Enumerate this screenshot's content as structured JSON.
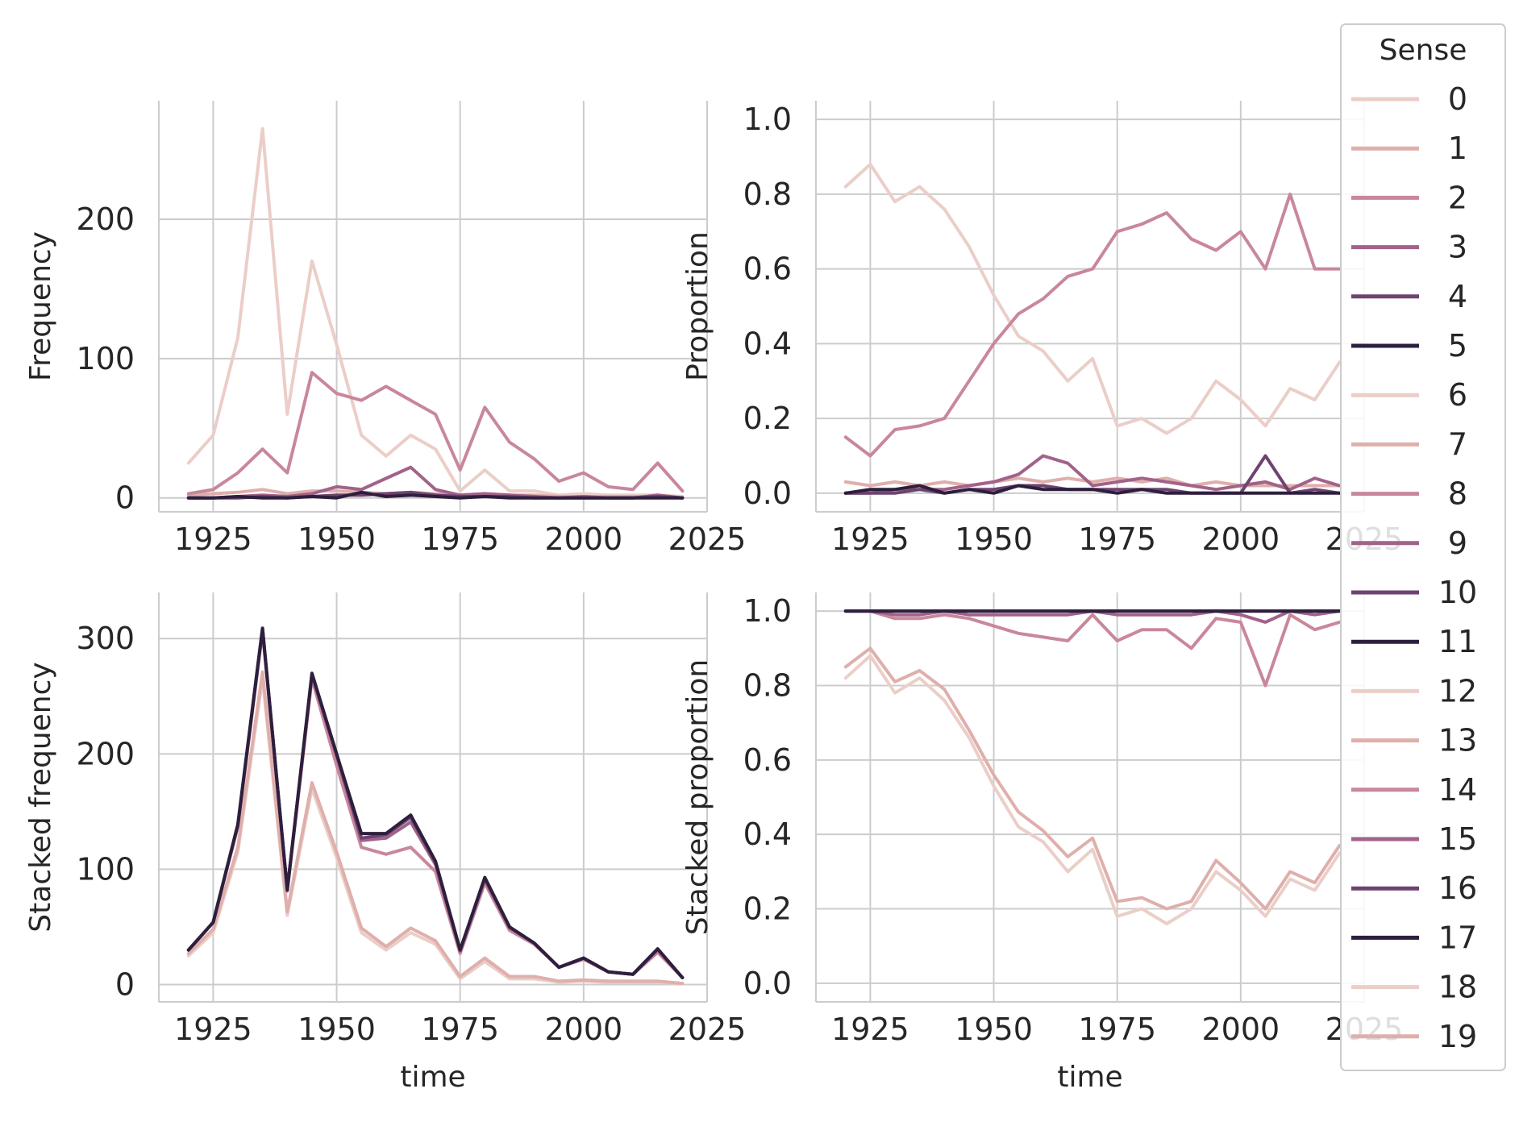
{
  "legend": {
    "title": "Sense",
    "labels": [
      "0",
      "1",
      "2",
      "3",
      "4",
      "5",
      "6",
      "7",
      "8",
      "9",
      "10",
      "11",
      "12",
      "13",
      "14",
      "15",
      "16",
      "17",
      "18",
      "19"
    ],
    "colors": [
      "#ebcec8",
      "#dfafac",
      "#c9879b",
      "#a26289",
      "#6e4370",
      "#2d1f3d",
      "#ebcec8",
      "#dfafac",
      "#c9879b",
      "#a26289",
      "#6e4370",
      "#2d1f3d",
      "#ebcec8",
      "#dfafac",
      "#c9879b",
      "#a26289",
      "#6e4370",
      "#2d1f3d",
      "#ebcec8",
      "#dfafac"
    ]
  },
  "chart_data": [
    {
      "type": "line",
      "panel": "top-left",
      "title": "",
      "xlabel": "",
      "ylabel": "Frequency",
      "xlim": [
        1914,
        2025
      ],
      "ylim": [
        -10,
        285
      ],
      "xticks": [
        1925,
        1950,
        1975,
        2000,
        2025
      ],
      "yticks": [
        0,
        100,
        200
      ],
      "grid": true,
      "x": [
        1920,
        1925,
        1930,
        1935,
        1940,
        1945,
        1950,
        1955,
        1960,
        1965,
        1970,
        1975,
        1980,
        1985,
        1990,
        1995,
        2000,
        2005,
        2010,
        2015,
        2020
      ],
      "series": [
        {
          "name": "0",
          "values": [
            25,
            45,
            115,
            265,
            60,
            170,
            110,
            45,
            30,
            45,
            35,
            5,
            20,
            5,
            5,
            2,
            3,
            2,
            2,
            2,
            1
          ]
        },
        {
          "name": "1",
          "values": [
            2,
            3,
            4,
            6,
            3,
            5,
            5,
            4,
            3,
            4,
            3,
            2,
            3,
            2,
            2,
            1,
            1,
            1,
            1,
            1,
            0
          ]
        },
        {
          "name": "2",
          "values": [
            3,
            6,
            18,
            35,
            18,
            90,
            75,
            70,
            80,
            70,
            60,
            20,
            65,
            40,
            28,
            12,
            18,
            8,
            6,
            25,
            5
          ]
        },
        {
          "name": "3",
          "values": [
            0,
            0,
            1,
            2,
            1,
            3,
            8,
            6,
            14,
            22,
            6,
            2,
            3,
            2,
            1,
            0,
            1,
            0,
            0,
            2,
            0
          ]
        },
        {
          "name": "4",
          "values": [
            0,
            0,
            0,
            1,
            0,
            1,
            2,
            2,
            3,
            4,
            2,
            1,
            1,
            1,
            0,
            0,
            0,
            0,
            0,
            1,
            0
          ]
        },
        {
          "name": "5",
          "values": [
            0,
            0,
            1,
            0,
            0,
            1,
            0,
            4,
            1,
            2,
            1,
            0,
            1,
            0,
            0,
            0,
            0,
            0,
            0,
            0,
            0
          ]
        }
      ]
    },
    {
      "type": "line",
      "panel": "top-right",
      "title": "",
      "xlabel": "",
      "ylabel": "Proportion",
      "xlim": [
        1914,
        2025
      ],
      "ylim": [
        -0.05,
        1.05
      ],
      "xticks": [
        1925,
        1950,
        1975,
        2000,
        2025
      ],
      "yticks": [
        0.0,
        0.2,
        0.4,
        0.6,
        0.8,
        1.0
      ],
      "grid": true,
      "x": [
        1920,
        1925,
        1930,
        1935,
        1940,
        1945,
        1950,
        1955,
        1960,
        1965,
        1970,
        1975,
        1980,
        1985,
        1990,
        1995,
        2000,
        2005,
        2010,
        2015,
        2020
      ],
      "series": [
        {
          "name": "0",
          "values": [
            0.82,
            0.88,
            0.78,
            0.82,
            0.76,
            0.66,
            0.53,
            0.42,
            0.38,
            0.3,
            0.36,
            0.18,
            0.2,
            0.16,
            0.2,
            0.3,
            0.25,
            0.18,
            0.28,
            0.25,
            0.35
          ]
        },
        {
          "name": "1",
          "values": [
            0.03,
            0.02,
            0.03,
            0.02,
            0.03,
            0.02,
            0.03,
            0.04,
            0.03,
            0.04,
            0.03,
            0.04,
            0.03,
            0.04,
            0.02,
            0.03,
            0.02,
            0.02,
            0.02,
            0.02,
            0.02
          ]
        },
        {
          "name": "2",
          "values": [
            0.15,
            0.1,
            0.17,
            0.18,
            0.2,
            0.3,
            0.4,
            0.48,
            0.52,
            0.58,
            0.6,
            0.7,
            0.72,
            0.75,
            0.68,
            0.65,
            0.7,
            0.6,
            0.8,
            0.6,
            0.6
          ]
        },
        {
          "name": "3",
          "values": [
            0.0,
            0.0,
            0.01,
            0.01,
            0.01,
            0.02,
            0.03,
            0.05,
            0.1,
            0.08,
            0.02,
            0.03,
            0.04,
            0.03,
            0.02,
            0.01,
            0.02,
            0.03,
            0.01,
            0.04,
            0.02
          ]
        },
        {
          "name": "4",
          "values": [
            0.0,
            0.0,
            0.0,
            0.01,
            0.0,
            0.01,
            0.01,
            0.02,
            0.02,
            0.01,
            0.01,
            0.01,
            0.01,
            0.01,
            0.0,
            0.0,
            0.0,
            0.1,
            0.0,
            0.01,
            0.0
          ]
        },
        {
          "name": "5",
          "values": [
            0.0,
            0.01,
            0.01,
            0.02,
            0.0,
            0.01,
            0.0,
            0.02,
            0.01,
            0.01,
            0.01,
            0.0,
            0.01,
            0.0,
            0.0,
            0.0,
            0.0,
            0.0,
            0.0,
            0.0,
            0.0
          ]
        }
      ]
    },
    {
      "type": "line",
      "panel": "bottom-left",
      "title": "",
      "xlabel": "time",
      "ylabel": "Stacked frequency",
      "xlim": [
        1914,
        2025
      ],
      "ylim": [
        -15,
        340
      ],
      "xticks": [
        1925,
        1950,
        1975,
        2000,
        2025
      ],
      "yticks": [
        0,
        100,
        200,
        300
      ],
      "grid": true,
      "x": [
        1920,
        1925,
        1930,
        1935,
        1940,
        1945,
        1950,
        1955,
        1960,
        1965,
        1970,
        1975,
        1980,
        1985,
        1990,
        1995,
        2000,
        2005,
        2010,
        2015,
        2020
      ],
      "series": [
        {
          "name": "0",
          "values": [
            25,
            45,
            115,
            265,
            60,
            170,
            110,
            45,
            30,
            45,
            35,
            5,
            20,
            5,
            5,
            2,
            3,
            2,
            2,
            2,
            1
          ]
        },
        {
          "name": "1",
          "values": [
            27,
            48,
            119,
            271,
            63,
            175,
            115,
            49,
            33,
            49,
            38,
            7,
            23,
            7,
            7,
            3,
            4,
            3,
            3,
            3,
            1
          ]
        },
        {
          "name": "2",
          "values": [
            30,
            54,
            137,
            306,
            81,
            265,
            190,
            119,
            113,
            119,
            98,
            27,
            88,
            47,
            35,
            15,
            22,
            11,
            9,
            28,
            6
          ]
        },
        {
          "name": "3",
          "values": [
            30,
            54,
            138,
            308,
            82,
            268,
            198,
            125,
            127,
            141,
            104,
            29,
            91,
            49,
            36,
            15,
            23,
            11,
            9,
            30,
            6
          ]
        },
        {
          "name": "4",
          "values": [
            30,
            54,
            138,
            309,
            82,
            269,
            200,
            127,
            130,
            145,
            106,
            30,
            92,
            50,
            36,
            15,
            23,
            11,
            9,
            31,
            6
          ]
        },
        {
          "name": "5",
          "values": [
            30,
            54,
            139,
            309,
            82,
            270,
            200,
            131,
            131,
            147,
            107,
            30,
            93,
            50,
            36,
            15,
            23,
            11,
            9,
            31,
            6
          ]
        }
      ]
    },
    {
      "type": "line",
      "panel": "bottom-right",
      "title": "",
      "xlabel": "time",
      "ylabel": "Stacked proportion",
      "xlim": [
        1914,
        2025
      ],
      "ylim": [
        -0.05,
        1.05
      ],
      "xticks": [
        1925,
        1950,
        1975,
        2000,
        2025
      ],
      "yticks": [
        0.0,
        0.2,
        0.4,
        0.6,
        0.8,
        1.0
      ],
      "grid": true,
      "x": [
        1920,
        1925,
        1930,
        1935,
        1940,
        1945,
        1950,
        1955,
        1960,
        1965,
        1970,
        1975,
        1980,
        1985,
        1990,
        1995,
        2000,
        2005,
        2010,
        2015,
        2020
      ],
      "series": [
        {
          "name": "0",
          "values": [
            0.82,
            0.88,
            0.78,
            0.82,
            0.76,
            0.66,
            0.53,
            0.42,
            0.38,
            0.3,
            0.36,
            0.18,
            0.2,
            0.16,
            0.2,
            0.3,
            0.25,
            0.18,
            0.28,
            0.25,
            0.35
          ]
        },
        {
          "name": "1",
          "values": [
            0.85,
            0.9,
            0.81,
            0.84,
            0.79,
            0.68,
            0.56,
            0.46,
            0.41,
            0.34,
            0.39,
            0.22,
            0.23,
            0.2,
            0.22,
            0.33,
            0.27,
            0.2,
            0.3,
            0.27,
            0.37
          ]
        },
        {
          "name": "2",
          "values": [
            1.0,
            1.0,
            0.98,
            0.98,
            0.99,
            0.98,
            0.96,
            0.94,
            0.93,
            0.92,
            0.99,
            0.92,
            0.95,
            0.95,
            0.9,
            0.98,
            0.97,
            0.8,
            0.99,
            0.95,
            0.97
          ]
        },
        {
          "name": "3",
          "values": [
            1.0,
            1.0,
            0.99,
            0.99,
            1.0,
            0.99,
            0.99,
            0.99,
            0.99,
            0.99,
            1.0,
            0.99,
            0.99,
            0.99,
            0.99,
            1.0,
            0.99,
            0.97,
            1.0,
            0.99,
            1.0
          ]
        },
        {
          "name": "4",
          "values": [
            1,
            1,
            1,
            1,
            1,
            1,
            1,
            1,
            1,
            1,
            1,
            1,
            1,
            1,
            1,
            1,
            1,
            1,
            1,
            1,
            1
          ]
        },
        {
          "name": "5",
          "values": [
            1,
            1,
            1,
            1,
            1,
            1,
            1,
            1,
            1,
            1,
            1,
            1,
            1,
            1,
            1,
            1,
            1,
            1,
            1,
            1,
            1
          ]
        }
      ]
    }
  ]
}
